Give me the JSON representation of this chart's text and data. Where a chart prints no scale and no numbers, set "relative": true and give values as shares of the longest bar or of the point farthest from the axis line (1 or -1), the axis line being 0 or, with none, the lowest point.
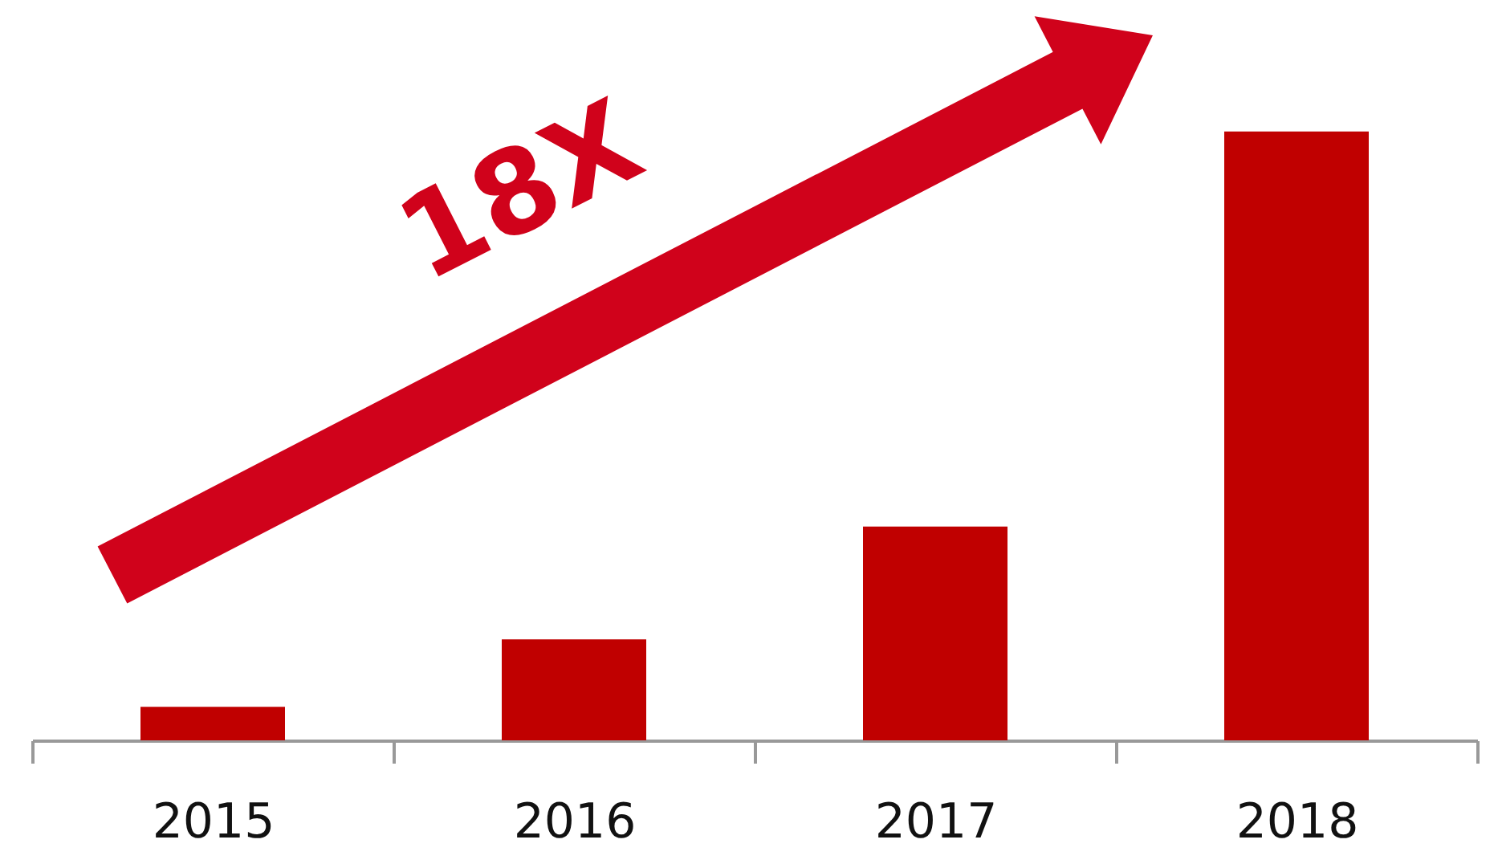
{
  "chart_data": {
    "type": "bar",
    "relative": true,
    "categories": [
      "2015",
      "2016",
      "2017",
      "2018"
    ],
    "values": [
      0.055,
      0.166,
      0.351,
      1
    ],
    "color": "#c00000",
    "annotations": [
      "18X"
    ],
    "grid": false
  }
}
